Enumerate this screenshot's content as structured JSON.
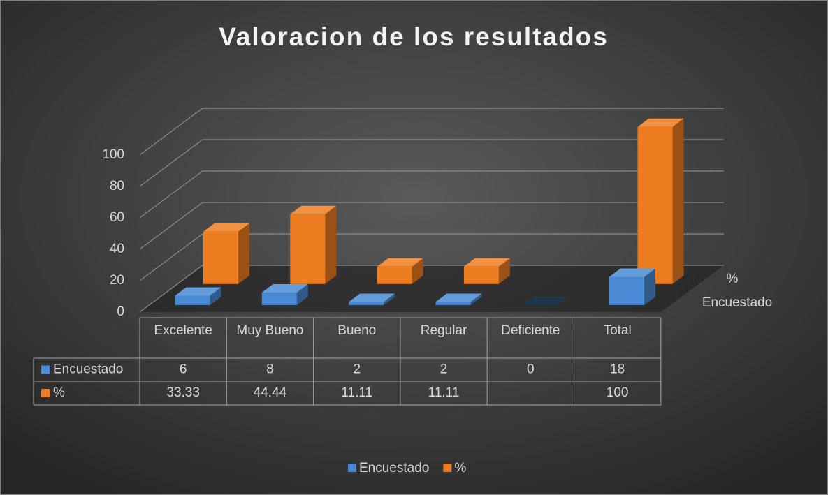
{
  "chart_data": {
    "type": "bar3d",
    "title": "Valoracion de los resultados",
    "categories": [
      "Excelente",
      "Muy Bueno",
      "Bueno",
      "Regular",
      "Deficiente",
      "Total"
    ],
    "series": [
      {
        "name": "Encuestado",
        "color": "#4a8ad4",
        "values": [
          6,
          8,
          2,
          2,
          0,
          18
        ]
      },
      {
        "name": "%",
        "color": "#ee7d22",
        "values": [
          33.33,
          44.44,
          11.11,
          11.11,
          null,
          100
        ]
      }
    ],
    "ylim": [
      0,
      100
    ],
    "yticks": [
      0,
      20,
      40,
      60,
      80,
      100
    ],
    "grid": true,
    "legend": "bottom",
    "data_table": true
  }
}
